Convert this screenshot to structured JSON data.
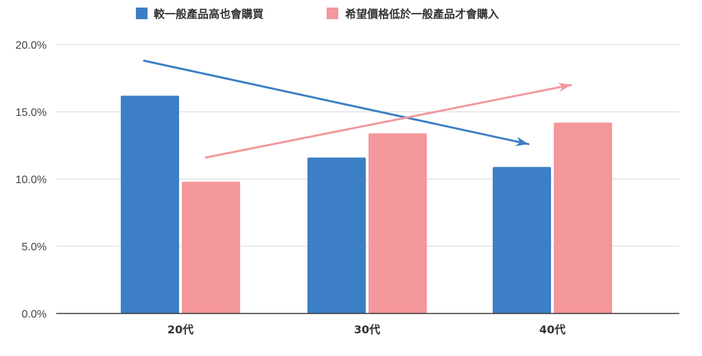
{
  "chart_data": {
    "type": "bar",
    "categories": [
      "20代",
      "30代",
      "40代"
    ],
    "series": [
      {
        "name": "較一般產品高也會購買",
        "values": [
          16.2,
          11.6,
          10.9
        ],
        "color": "#3d7fc6"
      },
      {
        "name": "希望價格低於一般產品才會購入",
        "values": [
          9.8,
          13.4,
          14.2
        ],
        "color": "#f4979b"
      }
    ],
    "ylim": [
      0,
      20
    ],
    "yticks": [
      0,
      5,
      10,
      15,
      20
    ],
    "ytick_labels": [
      "0.0%",
      "5.0%",
      "10.0%",
      "15.0%",
      "20.0%"
    ],
    "grid": true,
    "legend_position": "top",
    "trend_arrows": [
      {
        "series": "較一般產品高也會購買",
        "from": [
          0,
          18.8
        ],
        "to": [
          2,
          12.6
        ],
        "color": "#3d7fc6"
      },
      {
        "series": "希望價格低於一般產品才會購入",
        "from": [
          0,
          11.6
        ],
        "to": [
          2,
          17.0
        ],
        "color": "#f4979b"
      }
    ]
  }
}
